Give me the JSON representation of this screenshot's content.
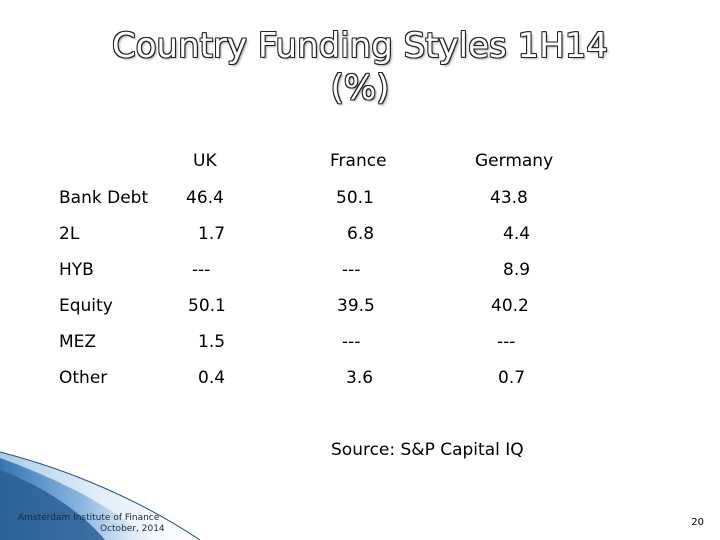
{
  "slide": {
    "title_line1": "Country Funding Styles 1H14",
    "title_line2": "(%)",
    "columns": [
      "UK",
      "France",
      "Germany"
    ],
    "rows": [
      {
        "label": "Bank Debt",
        "values": [
          "46.4",
          "50.1",
          "43.8"
        ]
      },
      {
        "label": "2L",
        "values": [
          "1.7",
          "6.8",
          "4.4"
        ]
      },
      {
        "label": "HYB",
        "values": [
          "---",
          "---",
          "8.9"
        ]
      },
      {
        "label": "Equity",
        "values": [
          "50.1",
          "39.5",
          "40.2"
        ]
      },
      {
        "label": "MEZ",
        "values": [
          "1.5",
          "---",
          "---"
        ]
      },
      {
        "label": "Other",
        "values": [
          "0.4",
          "3.6",
          "0.7"
        ]
      }
    ],
    "source": "Source:  S&P Capital IQ"
  },
  "footer": {
    "org": "Amsterdam Institute of Finance",
    "date": "October, 2014",
    "page_number": "20"
  },
  "colors": {
    "footer_blue": "#2f6fae",
    "footer_light": "#9cc3e6"
  }
}
